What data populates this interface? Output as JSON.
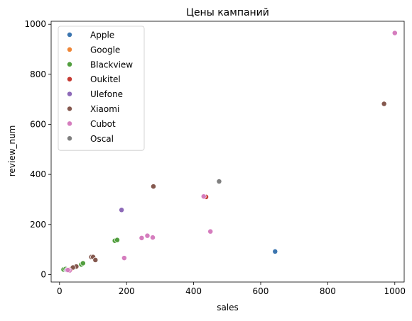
{
  "chart_data": {
    "type": "scatter",
    "title": "Цены кампаний",
    "xlabel": "sales",
    "ylabel": "review_num",
    "xlim": [
      -25,
      1028
    ],
    "ylim": [
      -30,
      1012
    ],
    "xticks": [
      0,
      200,
      400,
      600,
      800,
      1000
    ],
    "yticks": [
      0,
      200,
      400,
      600,
      800,
      1000
    ],
    "grid": false,
    "legend_position": "top-left",
    "series": [
      {
        "name": "Apple",
        "color": "#3b75af",
        "points": [
          [
            643,
            92
          ]
        ]
      },
      {
        "name": "Google",
        "color": "#ef8636",
        "points": [
          [
            30,
            20
          ],
          [
            35,
            22
          ]
        ]
      },
      {
        "name": "Blackview",
        "color": "#519e3e",
        "points": [
          [
            12,
            20
          ],
          [
            18,
            22
          ],
          [
            65,
            40
          ],
          [
            70,
            45
          ],
          [
            165,
            135
          ],
          [
            172,
            138
          ]
        ]
      },
      {
        "name": "Oukitel",
        "color": "#c53932",
        "points": [
          [
            437,
            310
          ],
          [
            25,
            18
          ]
        ]
      },
      {
        "name": "Ulefone",
        "color": "#8d69b8",
        "points": [
          [
            185,
            258
          ],
          [
            22,
            18
          ]
        ]
      },
      {
        "name": "Xiaomi",
        "color": "#84584e",
        "points": [
          [
            968,
            682
          ],
          [
            280,
            352
          ],
          [
            95,
            70
          ],
          [
            100,
            70
          ],
          [
            107,
            58
          ],
          [
            50,
            32
          ],
          [
            40,
            28
          ]
        ]
      },
      {
        "name": "Cubot",
        "color": "#d57dbe",
        "points": [
          [
            1000,
            965
          ],
          [
            430,
            312
          ],
          [
            450,
            172
          ],
          [
            262,
            155
          ],
          [
            278,
            148
          ],
          [
            245,
            146
          ],
          [
            193,
            66
          ],
          [
            30,
            16
          ],
          [
            25,
            18
          ]
        ]
      },
      {
        "name": "Oscal",
        "color": "#7f7f7f",
        "points": [
          [
            476,
            372
          ]
        ]
      }
    ]
  }
}
